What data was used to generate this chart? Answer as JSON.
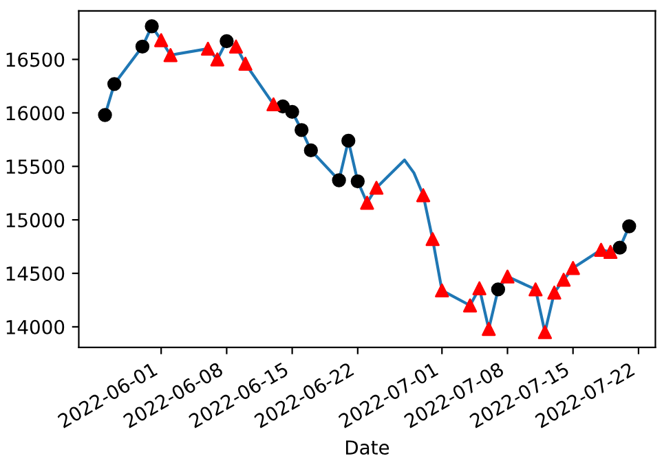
{
  "chart_data": {
    "type": "line",
    "xlabel": "Date",
    "xlim": [
      "2022-05-23T04:48",
      "2022-07-23T19:12"
    ],
    "ylim": [
      13807,
      16953
    ],
    "xticks": [
      "2022-06-01",
      "2022-06-08",
      "2022-06-15",
      "2022-06-22",
      "2022-07-01",
      "2022-07-08",
      "2022-07-15",
      "2022-07-22"
    ],
    "yticks": [
      14000,
      14500,
      15000,
      15500,
      16000,
      16500
    ],
    "grid": false,
    "legend": false,
    "series": [
      {
        "color": "#1f77b4",
        "marker": "none",
        "x": [
          "2022-05-26",
          "2022-05-27",
          "2022-05-30",
          "2022-05-31",
          "2022-06-01",
          "2022-06-02",
          "2022-06-06",
          "2022-06-07",
          "2022-06-08",
          "2022-06-09",
          "2022-06-10",
          "2022-06-13",
          "2022-06-14",
          "2022-06-15",
          "2022-06-16",
          "2022-06-17",
          "2022-06-20",
          "2022-06-21",
          "2022-06-22",
          "2022-06-23",
          "2022-06-24",
          "2022-06-27",
          "2022-06-28",
          "2022-06-29",
          "2022-06-30",
          "2022-07-01",
          "2022-07-04",
          "2022-07-05",
          "2022-07-06",
          "2022-07-07",
          "2022-07-08",
          "2022-07-11",
          "2022-07-12",
          "2022-07-13",
          "2022-07-14",
          "2022-07-15",
          "2022-07-18",
          "2022-07-19",
          "2022-07-20",
          "2022-07-21"
        ],
        "values": [
          15980,
          16270,
          16620,
          16810,
          16680,
          16540,
          16600,
          16500,
          16670,
          16620,
          16460,
          16080,
          16060,
          16010,
          15840,
          15650,
          15370,
          15740,
          15360,
          15160,
          15300,
          15560,
          15440,
          15230,
          14820,
          14340,
          14200,
          14360,
          13980,
          14350,
          14470,
          14350,
          13950,
          14320,
          14440,
          14550,
          14720,
          14700,
          14740,
          14940
        ]
      },
      {
        "type": "scatter",
        "color": "#000000",
        "marker": "circle",
        "x": [
          "2022-05-26",
          "2022-05-27",
          "2022-05-30",
          "2022-05-31",
          "2022-06-08",
          "2022-06-14",
          "2022-06-15",
          "2022-06-16",
          "2022-06-17",
          "2022-06-20",
          "2022-06-21",
          "2022-06-22",
          "2022-07-07",
          "2022-07-20",
          "2022-07-21"
        ],
        "values": [
          15980,
          16270,
          16620,
          16810,
          16670,
          16060,
          16010,
          15840,
          15650,
          15370,
          15740,
          15360,
          14350,
          14740,
          14940
        ]
      },
      {
        "type": "scatter",
        "color": "#ff0000",
        "marker": "triangle",
        "x": [
          "2022-06-01",
          "2022-06-02",
          "2022-06-06",
          "2022-06-07",
          "2022-06-09",
          "2022-06-10",
          "2022-06-13",
          "2022-06-23",
          "2022-06-24",
          "2022-06-29",
          "2022-06-30",
          "2022-07-01",
          "2022-07-04",
          "2022-07-05",
          "2022-07-06",
          "2022-07-08",
          "2022-07-11",
          "2022-07-12",
          "2022-07-13",
          "2022-07-14",
          "2022-07-15",
          "2022-07-18",
          "2022-07-19"
        ],
        "values": [
          16680,
          16540,
          16600,
          16500,
          16620,
          16460,
          16080,
          15160,
          15300,
          15230,
          14820,
          14340,
          14200,
          14360,
          13980,
          14470,
          14350,
          13950,
          14320,
          14440,
          14550,
          14720,
          14700
        ]
      }
    ]
  }
}
